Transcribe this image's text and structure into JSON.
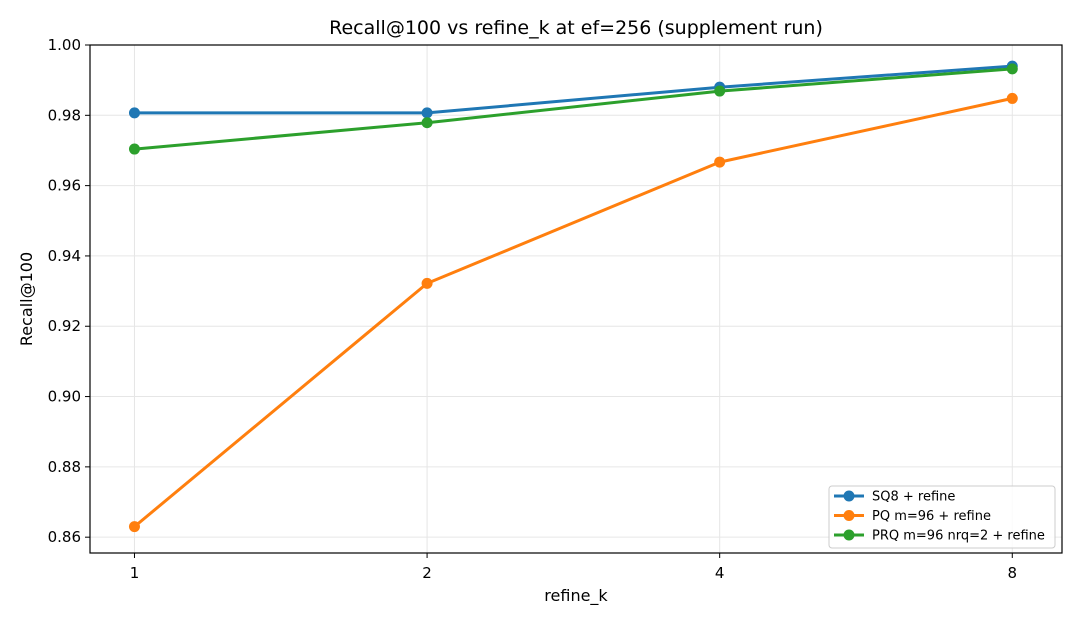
{
  "chart_data": {
    "type": "line",
    "title": "Recall@100 vs refine_k at ef=256 (supplement run)",
    "xlabel": "refine_k",
    "ylabel": "Recall@100",
    "x": [
      1,
      2,
      4,
      8
    ],
    "x_tick_labels": [
      "1",
      "2",
      "4",
      "8"
    ],
    "xscale": "log2",
    "xlim": [
      0.9,
      9.0
    ],
    "ylim": [
      0.8555,
      1.0
    ],
    "y_ticks": [
      0.86,
      0.88,
      0.9,
      0.92,
      0.94,
      0.96,
      0.98,
      1.0
    ],
    "y_tick_labels": [
      "0.86",
      "0.88",
      "0.90",
      "0.92",
      "0.94",
      "0.96",
      "0.98",
      "1.00"
    ],
    "grid": true,
    "legend_position": "bottom-right",
    "series": [
      {
        "name": "SQ8 + refine",
        "color": "#1f77b4",
        "values": [
          0.9807,
          0.9807,
          0.988,
          0.994
        ]
      },
      {
        "name": "PQ m=96 + refine",
        "color": "#ff7f0e",
        "values": [
          0.863,
          0.9322,
          0.9667,
          0.9848
        ]
      },
      {
        "name": "PRQ m=96 nrq=2 + refine",
        "color": "#2ca02c",
        "values": [
          0.9704,
          0.9779,
          0.9869,
          0.9932
        ]
      }
    ]
  }
}
